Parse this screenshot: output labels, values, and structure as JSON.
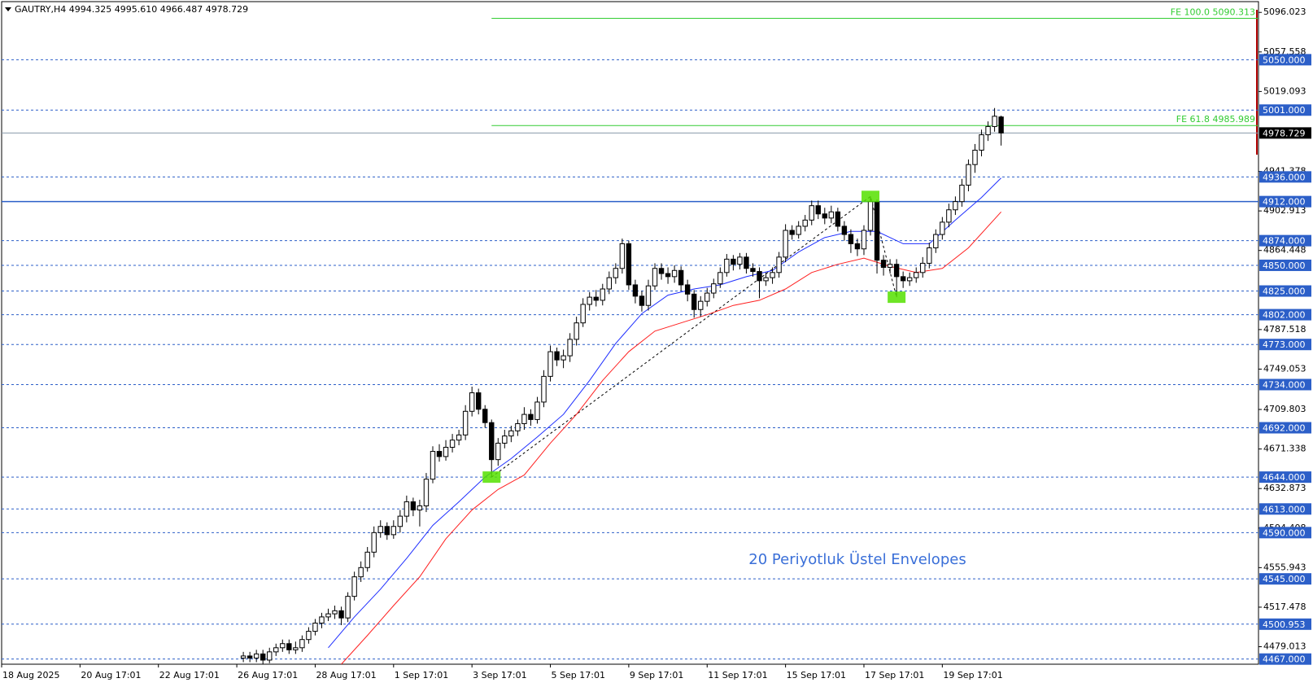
{
  "chart_data": {
    "type": "candlestick",
    "title": "GAUTRY,H4  4994.325 4995.610 4966.487 4978.729",
    "annotation": "20 Periyotluk Üstel Envelopes",
    "xlim": [
      0,
      192.4
    ],
    "ylim": [
      4462,
      5106.5
    ],
    "xticks": [
      {
        "value": 0,
        "label": "18 Aug 2025"
      },
      {
        "value": 12,
        "label": "20 Aug 17:01"
      },
      {
        "value": 24,
        "label": "22 Aug 17:01"
      },
      {
        "value": 36,
        "label": "26 Aug 17:01"
      },
      {
        "value": 48,
        "label": "28 Aug 17:01"
      },
      {
        "value": 60,
        "label": "1 Sep 17:01"
      },
      {
        "value": 72,
        "label": "3 Sep 17:01"
      },
      {
        "value": 84,
        "label": "5 Sep 17:01"
      },
      {
        "value": 96,
        "label": "9 Sep 17:01"
      },
      {
        "value": 108,
        "label": "11 Sep 17:01"
      },
      {
        "value": 120,
        "label": "15 Sep 17:01"
      },
      {
        "value": 132,
        "label": "17 Sep 17:01"
      },
      {
        "value": 144,
        "label": "19 Sep 17:01"
      }
    ],
    "yticks": [
      5096.023,
      5057.558,
      5019.093,
      4941.378,
      4902.913,
      4864.448,
      4787.518,
      4749.053,
      4709.803,
      4671.338,
      4632.873,
      4594.408,
      4555.943,
      4517.478,
      4479.013
    ],
    "x": [
      37,
      38,
      39,
      40,
      41,
      42,
      43,
      44,
      45,
      46,
      47,
      48,
      49,
      50,
      51,
      52,
      53,
      54,
      55,
      56,
      57,
      58,
      59,
      60,
      61,
      62,
      63,
      64,
      65,
      66,
      67,
      68,
      69,
      70,
      71,
      72,
      73,
      74,
      75,
      76,
      77,
      78,
      79,
      80,
      81,
      82,
      83,
      84,
      85,
      86,
      87,
      88,
      89,
      90,
      91,
      92,
      93,
      94,
      95,
      96,
      97,
      98,
      99,
      100,
      101,
      102,
      103,
      104,
      105,
      106,
      107,
      108,
      109,
      110,
      111,
      112,
      113,
      114,
      115,
      116,
      117,
      118,
      119,
      120,
      121,
      122,
      123,
      124,
      125,
      126,
      127,
      128,
      129,
      130,
      131,
      132,
      133,
      134,
      135,
      136,
      137,
      138,
      139,
      140,
      141,
      142,
      143,
      144,
      145,
      146,
      147,
      148,
      149,
      150,
      151,
      152,
      153
    ],
    "open": [
      4468,
      4470,
      4468,
      4472,
      4466,
      4474,
      4478,
      4482,
      4476,
      4478,
      4486,
      4494,
      4502,
      4508,
      4511,
      4514,
      4507,
      4528,
      4547,
      4556,
      4571,
      4590,
      4596,
      4588,
      4596,
      4606,
      4620,
      4612,
      4616,
      4642,
      4669,
      4664,
      4673,
      4680,
      4685,
      4708,
      4726,
      4710,
      4697,
      4661,
      4677,
      4684,
      4689,
      4696,
      4705,
      4700,
      4717,
      4742,
      4766,
      4758,
      4762,
      4778,
      4794,
      4812,
      4819,
      4816,
      4827,
      4838,
      4847,
      4871,
      4831,
      4820,
      4811,
      4830,
      4847,
      4842,
      4839,
      4845,
      4831,
      4822,
      4807,
      4815,
      4823,
      4832,
      4843,
      4856,
      4851,
      4858,
      4847,
      4844,
      4835,
      4838,
      4843,
      4858,
      4884,
      4880,
      4888,
      4894,
      4908,
      4900,
      4896,
      4902,
      4888,
      4880,
      4871,
      4866,
      4884,
      4912,
      4855,
      4848,
      4851,
      4839,
      4835,
      4838,
      4843,
      4852,
      4867,
      4880,
      4892,
      4904,
      4912,
      4928,
      4948,
      4962,
      4977,
      4985,
      4994.325
    ],
    "high": [
      4474,
      4474,
      4476,
      4476,
      4478,
      4482,
      4486,
      4486,
      4484,
      4490,
      4498,
      4506,
      4512,
      4516,
      4519,
      4518,
      4532,
      4552,
      4562,
      4576,
      4596,
      4602,
      4600,
      4602,
      4612,
      4626,
      4624,
      4622,
      4648,
      4674,
      4676,
      4680,
      4686,
      4690,
      4714,
      4732,
      4730,
      4714,
      4700,
      4682,
      4690,
      4694,
      4700,
      4712,
      4710,
      4722,
      4748,
      4772,
      4770,
      4768,
      4784,
      4800,
      4818,
      4824,
      4826,
      4832,
      4844,
      4852,
      4876,
      4874,
      4836,
      4825,
      4836,
      4852,
      4852,
      4848,
      4850,
      4849,
      4836,
      4826,
      4820,
      4828,
      4837,
      4848,
      4861,
      4860,
      4862,
      4862,
      4852,
      4848,
      4843,
      4848,
      4863,
      4890,
      4889,
      4893,
      4899,
      4913,
      4913,
      4906,
      4908,
      4906,
      4893,
      4885,
      4876,
      4889,
      4917,
      4914,
      4860,
      4856,
      4856,
      4844,
      4843,
      4848,
      4858,
      4872,
      4885,
      4897,
      4910,
      4917,
      4934,
      4953,
      4968,
      4982,
      4990,
      5003,
      4995.61
    ],
    "low": [
      4464,
      4464,
      4464,
      4462,
      4463,
      4470,
      4474,
      4472,
      4472,
      4474,
      4482,
      4490,
      4497,
      4504,
      4506,
      4500,
      4503,
      4524,
      4542,
      4552,
      4566,
      4585,
      4583,
      4584,
      4590,
      4600,
      4606,
      4596,
      4610,
      4638,
      4659,
      4660,
      4668,
      4675,
      4680,
      4703,
      4705,
      4692,
      4644,
      4655,
      4672,
      4678,
      4684,
      4690,
      4694,
      4696,
      4712,
      4737,
      4752,
      4750,
      4756,
      4772,
      4790,
      4806,
      4810,
      4811,
      4822,
      4832,
      4842,
      4826,
      4813,
      4805,
      4806,
      4826,
      4836,
      4832,
      4833,
      4825,
      4815,
      4799,
      4800,
      4810,
      4818,
      4828,
      4839,
      4845,
      4846,
      4842,
      4839,
      4818,
      4830,
      4832,
      4838,
      4853,
      4875,
      4876,
      4883,
      4889,
      4895,
      4890,
      4891,
      4883,
      4874,
      4862,
      4859,
      4860,
      4879,
      4842,
      4840,
      4842,
      4819,
      4828,
      4830,
      4833,
      4838,
      4847,
      4862,
      4875,
      4887,
      4899,
      4907,
      4922,
      4940,
      4956,
      4971,
      4980,
      4966.487
    ],
    "close": [
      4470,
      4468,
      4472,
      4466,
      4474,
      4478,
      4482,
      4476,
      4478,
      4486,
      4494,
      4502,
      4508,
      4511,
      4514,
      4507,
      4528,
      4547,
      4556,
      4571,
      4590,
      4596,
      4588,
      4596,
      4606,
      4620,
      4612,
      4616,
      4642,
      4669,
      4664,
      4673,
      4680,
      4685,
      4708,
      4726,
      4710,
      4697,
      4661,
      4677,
      4684,
      4689,
      4696,
      4705,
      4700,
      4717,
      4742,
      4766,
      4758,
      4762,
      4778,
      4794,
      4812,
      4819,
      4816,
      4827,
      4838,
      4847,
      4871,
      4831,
      4820,
      4811,
      4830,
      4847,
      4842,
      4839,
      4845,
      4831,
      4822,
      4807,
      4815,
      4823,
      4832,
      4843,
      4856,
      4851,
      4858,
      4847,
      4844,
      4835,
      4838,
      4843,
      4858,
      4884,
      4880,
      4888,
      4894,
      4908,
      4900,
      4896,
      4902,
      4888,
      4880,
      4871,
      4866,
      4884,
      4912,
      4855,
      4848,
      4851,
      4839,
      4835,
      4838,
      4843,
      4852,
      4867,
      4880,
      4892,
      4904,
      4912,
      4928,
      4948,
      4962,
      4977,
      4985,
      4995,
      4978.729
    ],
    "envelopes": [
      {
        "color": "#1f2fff",
        "x": [
          50,
          54,
          58,
          62,
          66,
          70,
          74,
          78,
          82,
          86,
          90,
          94,
          98,
          102,
          106,
          110,
          114,
          118,
          122,
          126,
          130,
          134,
          138,
          142,
          146,
          150,
          153
        ],
        "values": [
          4478,
          4508,
          4535,
          4565,
          4597,
          4620,
          4644,
          4662,
          4683,
          4705,
          4738,
          4774,
          4803,
          4821,
          4827,
          4831,
          4839,
          4845,
          4863,
          4877,
          4883,
          4883,
          4871,
          4871,
          4894,
          4916,
          4935
        ]
      },
      {
        "color": "#ff2020",
        "x": [
          52,
          56,
          60,
          64,
          68,
          72,
          76,
          80,
          84,
          88,
          92,
          96,
          100,
          104,
          108,
          112,
          116,
          120,
          124,
          128,
          132,
          136,
          140,
          144,
          148,
          153
        ],
        "values": [
          4462,
          4490,
          4519,
          4547,
          4584,
          4612,
          4632,
          4646,
          4677,
          4705,
          4738,
          4766,
          4786,
          4794,
          4802,
          4811,
          4816,
          4827,
          4843,
          4851,
          4857,
          4849,
          4843,
          4847,
          4867,
          4902
        ]
      }
    ],
    "zigzag": {
      "x": [
        75,
        133,
        137
      ],
      "values": [
        4644,
        4917,
        4819
      ],
      "color": "#55e000"
    },
    "fibo": [
      {
        "x": 75,
        "value": 5090.313,
        "label": "FE 100.0 5090.313"
      },
      {
        "x": 75,
        "value": 4985.989,
        "label": "FE 61.8 4985.989"
      }
    ],
    "fibo_color": "#33cc33",
    "levels": [
      {
        "value": 5050,
        "label": "5050.000"
      },
      {
        "value": 5001,
        "label": "5001.000"
      },
      {
        "value": 4936,
        "label": "4936.000"
      },
      {
        "value": 4912,
        "label": "4912.000",
        "line": "solid"
      },
      {
        "value": 4874,
        "label": "4874.000"
      },
      {
        "value": 4850,
        "label": "4850.000"
      },
      {
        "value": 4825,
        "label": "4825.000"
      },
      {
        "value": 4802,
        "label": "4802.000"
      },
      {
        "value": 4773,
        "label": "4773.000"
      },
      {
        "value": 4734,
        "label": "4734.000"
      },
      {
        "value": 4692,
        "label": "4692.000"
      },
      {
        "value": 4644,
        "label": "4644.000"
      },
      {
        "value": 4613,
        "label": "4613.000"
      },
      {
        "value": 4590,
        "label": "4590.000"
      },
      {
        "value": 4545,
        "label": "4545.000"
      },
      {
        "value": 4500.953,
        "label": "4500.953"
      },
      {
        "value": 4467,
        "label": "4467.000"
      }
    ],
    "level_color": "#2c5fc8",
    "current_price": 4978.729
  }
}
